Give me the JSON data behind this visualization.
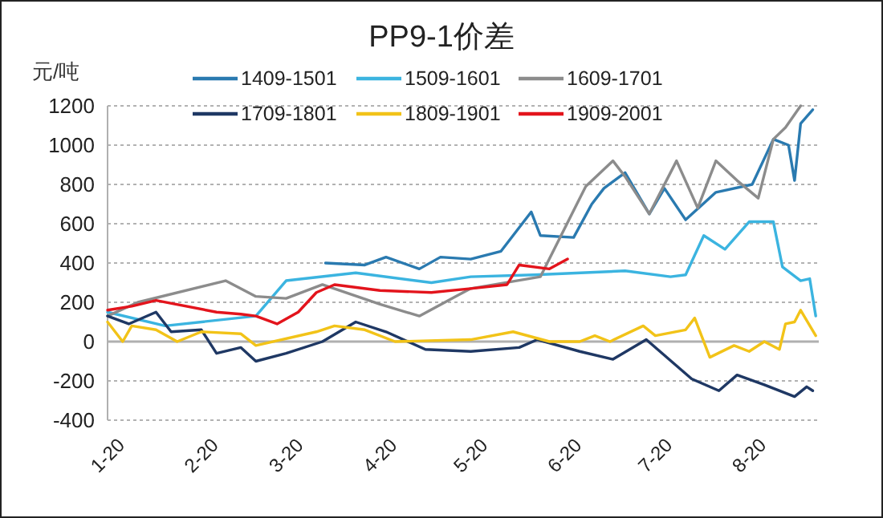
{
  "chart_data": {
    "type": "line",
    "title": "PP9-1价差",
    "ylabel": "元/吨",
    "xlim": [
      "--01-20",
      "--09-12"
    ],
    "xticks": [
      {
        "value": "--01-20",
        "label": "1-20"
      },
      {
        "value": "--02-20",
        "label": "2-20"
      },
      {
        "value": "--03-20",
        "label": "3-20"
      },
      {
        "value": "--04-20",
        "label": "4-20"
      },
      {
        "value": "--05-20",
        "label": "5-20"
      },
      {
        "value": "--06-20",
        "label": "6-20"
      },
      {
        "value": "--07-20",
        "label": "7-20"
      },
      {
        "value": "--08-20",
        "label": "8-20"
      }
    ],
    "ylim": [
      -400,
      1200
    ],
    "yticks": [
      -400,
      -200,
      0,
      200,
      400,
      600,
      800,
      1000,
      1200
    ],
    "grid": "y",
    "legend": "top",
    "marker": "none",
    "line_style": "solid",
    "series": [
      {
        "name": "1409-1501",
        "color": "#2a7ab0",
        "x": [
          "--04-02",
          "--04-15",
          "--04-22",
          "--05-03",
          "--05-10",
          "--05-20",
          "--05-30",
          "--06-09",
          "--06-12",
          "--06-23",
          "--06-29",
          "--07-03",
          "--07-10",
          "--07-18",
          "--07-23",
          "--07-30",
          "--08-09",
          "--08-21",
          "--08-28",
          "--09-02",
          "--09-04",
          "--09-06",
          "--09-10"
        ],
        "values": [
          400,
          390,
          430,
          370,
          430,
          420,
          460,
          660,
          540,
          530,
          700,
          780,
          860,
          650,
          780,
          620,
          760,
          800,
          1030,
          1000,
          820,
          1110,
          1180
        ]
      },
      {
        "name": "1509-1601",
        "color": "#3bb4e0",
        "x": [
          "--01-20",
          "--02-08",
          "--03-10",
          "--03-20",
          "--04-12",
          "--05-07",
          "--05-20",
          "--06-10",
          "--07-10",
          "--07-25",
          "--07-30",
          "--08-05",
          "--08-12",
          "--08-20",
          "--08-28",
          "--08-31",
          "--09-06",
          "--09-09",
          "--09-11"
        ],
        "values": [
          150,
          80,
          130,
          310,
          350,
          300,
          330,
          340,
          360,
          330,
          340,
          540,
          470,
          610,
          610,
          380,
          310,
          320,
          130
        ]
      },
      {
        "name": "1609-1701",
        "color": "#8c8c8c",
        "x": [
          "--01-20",
          "--01-30",
          "--02-28",
          "--03-10",
          "--03-20",
          "--04-01",
          "--04-20",
          "--05-03",
          "--05-15",
          "--05-20",
          "--06-12",
          "--06-27",
          "--07-06",
          "--07-10",
          "--07-18",
          "--07-27",
          "--08-03",
          "--08-09",
          "--08-16",
          "--08-23",
          "--08-28",
          "--09-01",
          "--09-06"
        ],
        "values": [
          130,
          200,
          310,
          230,
          220,
          290,
          190,
          130,
          230,
          270,
          330,
          790,
          920,
          840,
          650,
          920,
          680,
          920,
          820,
          730,
          1030,
          1090,
          1200
        ]
      },
      {
        "name": "1709-1801",
        "color": "#1f3864",
        "x": [
          "--01-20",
          "--01-27",
          "--02-05",
          "--02-10",
          "--02-20",
          "--02-25",
          "--03-05",
          "--03-10",
          "--03-20",
          "--04-01",
          "--04-12",
          "--04-22",
          "--05-05",
          "--05-20",
          "--06-05",
          "--06-11",
          "--06-25",
          "--07-06",
          "--07-17",
          "--08-01",
          "--08-10",
          "--08-16",
          "--08-25",
          "--09-04",
          "--09-08",
          "--09-10"
        ],
        "values": [
          130,
          90,
          150,
          50,
          60,
          -60,
          -30,
          -100,
          -60,
          0,
          100,
          50,
          -40,
          -50,
          -30,
          10,
          -50,
          -90,
          10,
          -190,
          -250,
          -170,
          -220,
          -280,
          -230,
          -250
        ]
      },
      {
        "name": "1809-1901",
        "color": "#f2c318",
        "x": [
          "--01-20",
          "--01-25",
          "--01-28",
          "--02-05",
          "--02-12",
          "--02-20",
          "--03-05",
          "--03-10",
          "--03-30",
          "--04-05",
          "--04-15",
          "--04-25",
          "--05-20",
          "--06-03",
          "--06-15",
          "--06-25",
          "--06-30",
          "--07-05",
          "--07-16",
          "--07-20",
          "--07-30",
          "--08-02",
          "--08-07",
          "--08-15",
          "--08-20",
          "--08-25",
          "--08-30",
          "--09-01",
          "--09-04",
          "--09-06",
          "--09-11"
        ],
        "values": [
          100,
          0,
          80,
          60,
          0,
          50,
          40,
          -20,
          50,
          80,
          60,
          0,
          10,
          50,
          0,
          0,
          30,
          0,
          80,
          30,
          60,
          120,
          -80,
          -20,
          -50,
          0,
          -40,
          90,
          100,
          160,
          30
        ]
      },
      {
        "name": "1909-2001",
        "color": "#e3141c",
        "x": [
          "--01-20",
          "--01-28",
          "--02-05",
          "--02-25",
          "--03-05",
          "--03-10",
          "--03-17",
          "--03-24",
          "--03-30",
          "--04-05",
          "--04-20",
          "--05-07",
          "--05-20",
          "--06-01",
          "--06-05",
          "--06-15",
          "--06-21"
        ],
        "values": [
          160,
          180,
          210,
          150,
          140,
          130,
          90,
          150,
          250,
          290,
          260,
          250,
          270,
          290,
          390,
          370,
          420
        ]
      }
    ]
  }
}
